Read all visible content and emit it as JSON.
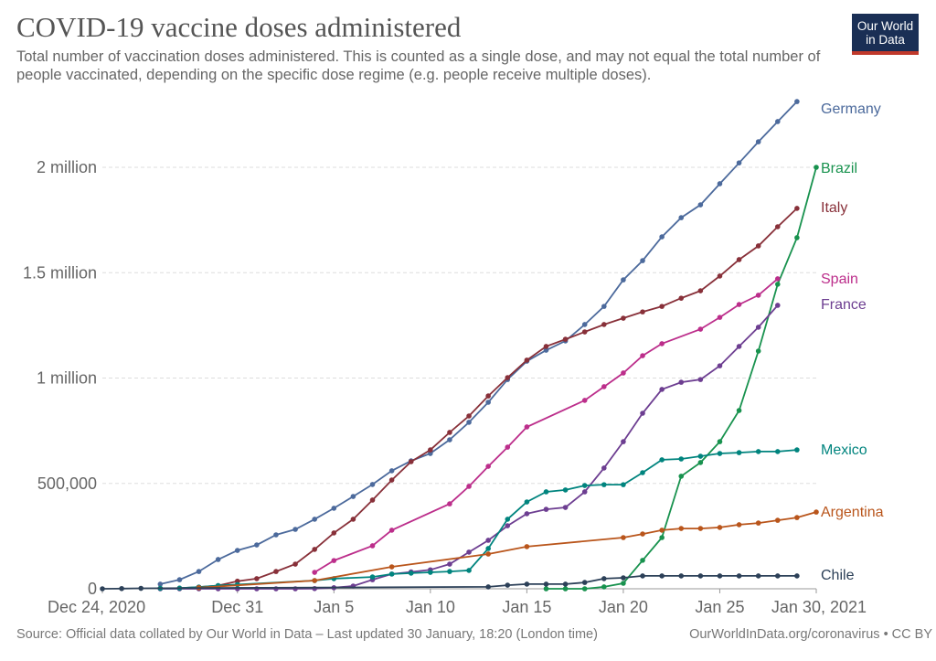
{
  "header": {
    "title": "COVID-19 vaccine doses administered",
    "subtitle": "Total number of vaccination doses administered. This is counted as a single dose, and may not equal the total number of people vaccinated, depending on the specific dose regime (e.g. people receive multiple doses).",
    "logo_text": "Our World in Data"
  },
  "footer": {
    "source": "Source: Official data collated by Our World in Data – Last updated 30 January, 18:20 (London time)",
    "link": "OurWorldInData.org/coronavirus • CC BY"
  },
  "chart_data": {
    "type": "line",
    "title": "COVID-19 vaccine doses administered",
    "xlabel": "",
    "ylabel": "",
    "x_unit": "days since Dec 24, 2020",
    "xlim": [
      0,
      37
    ],
    "ylim": [
      0,
      2400000
    ],
    "grid": true,
    "legend": "inline-right",
    "x_ticks": [
      {
        "day": 0,
        "label": "Dec 24, 2020"
      },
      {
        "day": 7,
        "label": "Dec 31"
      },
      {
        "day": 12,
        "label": "Jan 5"
      },
      {
        "day": 17,
        "label": "Jan 10"
      },
      {
        "day": 22,
        "label": "Jan 15"
      },
      {
        "day": 27,
        "label": "Jan 20"
      },
      {
        "day": 32,
        "label": "Jan 25"
      },
      {
        "day": 37,
        "label": "Jan 30, 2021"
      }
    ],
    "y_ticks": [
      {
        "value": 0,
        "label": "0"
      },
      {
        "value": 500000,
        "label": "500,000"
      },
      {
        "value": 1000000,
        "label": "1 million"
      },
      {
        "value": 1500000,
        "label": "1.5 million"
      },
      {
        "value": 2000000,
        "label": "2 million"
      }
    ],
    "series": [
      {
        "name": "Germany",
        "color": "#4c6a9c",
        "points": [
          [
            3,
            22000
          ],
          [
            4,
            43000
          ],
          [
            5,
            82000
          ],
          [
            6,
            139000
          ],
          [
            7,
            182000
          ],
          [
            8,
            208000
          ],
          [
            9,
            256000
          ],
          [
            10,
            282000
          ],
          [
            11,
            330000
          ],
          [
            12,
            382000
          ],
          [
            13,
            438000
          ],
          [
            14,
            495000
          ],
          [
            15,
            560000
          ],
          [
            16,
            607000
          ],
          [
            17,
            642000
          ],
          [
            18,
            707000
          ],
          [
            19,
            790000
          ],
          [
            20,
            885000
          ],
          [
            21,
            993000
          ],
          [
            22,
            1080000
          ],
          [
            23,
            1132000
          ],
          [
            24,
            1176000
          ],
          [
            25,
            1254000
          ],
          [
            26,
            1340000
          ],
          [
            27,
            1466000
          ],
          [
            28,
            1557000
          ],
          [
            29,
            1670000
          ],
          [
            30,
            1761000
          ],
          [
            31,
            1822000
          ],
          [
            32,
            1922000
          ],
          [
            33,
            2021000
          ],
          [
            34,
            2121000
          ],
          [
            35,
            2217000
          ],
          [
            36,
            2312000
          ]
        ]
      },
      {
        "name": "Brazil",
        "color": "#18924e",
        "points": [
          [
            23,
            0
          ],
          [
            24,
            0
          ],
          [
            25,
            0
          ],
          [
            26,
            9000
          ],
          [
            27,
            26000
          ],
          [
            28,
            135000
          ],
          [
            29,
            243000
          ],
          [
            30,
            534000
          ],
          [
            31,
            599000
          ],
          [
            32,
            698000
          ],
          [
            33,
            846000
          ],
          [
            34,
            1128000
          ],
          [
            35,
            1445000
          ],
          [
            36,
            1666000
          ],
          [
            37,
            2000000
          ]
        ]
      },
      {
        "name": "Italy",
        "color": "#883039",
        "points": [
          [
            3,
            2000
          ],
          [
            4,
            3000
          ],
          [
            5,
            8000
          ],
          [
            6,
            15000
          ],
          [
            7,
            36000
          ],
          [
            8,
            48000
          ],
          [
            9,
            82000
          ],
          [
            10,
            117000
          ],
          [
            11,
            187000
          ],
          [
            12,
            265000
          ],
          [
            13,
            330000
          ],
          [
            14,
            421000
          ],
          [
            15,
            516000
          ],
          [
            16,
            603000
          ],
          [
            17,
            659000
          ],
          [
            18,
            742000
          ],
          [
            19,
            820000
          ],
          [
            20,
            915000
          ],
          [
            21,
            1002000
          ],
          [
            22,
            1085000
          ],
          [
            23,
            1150000
          ],
          [
            24,
            1184000
          ],
          [
            25,
            1219000
          ],
          [
            26,
            1254000
          ],
          [
            27,
            1284000
          ],
          [
            28,
            1314000
          ],
          [
            29,
            1340000
          ],
          [
            30,
            1379000
          ],
          [
            31,
            1414000
          ],
          [
            32,
            1484000
          ],
          [
            33,
            1562000
          ],
          [
            34,
            1627000
          ],
          [
            35,
            1718000
          ],
          [
            36,
            1805000
          ]
        ]
      },
      {
        "name": "Spain",
        "color": "#bc2e8b",
        "points": [
          [
            11,
            78000
          ],
          [
            12,
            134000
          ],
          [
            14,
            204000
          ],
          [
            15,
            278000
          ],
          [
            18,
            403000
          ],
          [
            19,
            486000
          ],
          [
            20,
            581000
          ],
          [
            21,
            672000
          ],
          [
            22,
            768000
          ],
          [
            25,
            894000
          ],
          [
            26,
            959000
          ],
          [
            27,
            1024000
          ],
          [
            28,
            1106000
          ],
          [
            29,
            1163000
          ],
          [
            31,
            1232000
          ],
          [
            32,
            1288000
          ],
          [
            33,
            1349000
          ],
          [
            34,
            1393000
          ],
          [
            35,
            1471000
          ]
        ]
      },
      {
        "name": "France",
        "color": "#6d3e91",
        "points": [
          [
            3,
            0
          ],
          [
            4,
            0
          ],
          [
            5,
            0
          ],
          [
            6,
            0
          ],
          [
            7,
            0
          ],
          [
            8,
            0
          ],
          [
            9,
            0
          ],
          [
            10,
            0
          ],
          [
            11,
            1000
          ],
          [
            12,
            5000
          ],
          [
            13,
            13000
          ],
          [
            14,
            43000
          ],
          [
            15,
            70000
          ],
          [
            16,
            80000
          ],
          [
            17,
            90000
          ],
          [
            18,
            117000
          ],
          [
            19,
            174000
          ],
          [
            20,
            230000
          ],
          [
            21,
            299000
          ],
          [
            22,
            356000
          ],
          [
            23,
            377000
          ],
          [
            24,
            386000
          ],
          [
            25,
            460000
          ],
          [
            26,
            573000
          ],
          [
            27,
            698000
          ],
          [
            28,
            833000
          ],
          [
            29,
            946000
          ],
          [
            30,
            980000
          ],
          [
            31,
            993000
          ],
          [
            32,
            1058000
          ],
          [
            33,
            1150000
          ],
          [
            34,
            1241000
          ],
          [
            35,
            1345000
          ]
        ]
      },
      {
        "name": "Mexico",
        "color": "#00847e",
        "points": [
          [
            3,
            2000
          ],
          [
            4,
            3000
          ],
          [
            5,
            8000
          ],
          [
            6,
            15000
          ],
          [
            7,
            20000
          ],
          [
            11,
            39000
          ],
          [
            12,
            48000
          ],
          [
            14,
            56000
          ],
          [
            15,
            70000
          ],
          [
            16,
            74000
          ],
          [
            17,
            78000
          ],
          [
            18,
            82000
          ],
          [
            19,
            87000
          ],
          [
            20,
            191000
          ],
          [
            21,
            330000
          ],
          [
            22,
            412000
          ],
          [
            23,
            460000
          ],
          [
            24,
            469000
          ],
          [
            25,
            490000
          ],
          [
            26,
            494000
          ],
          [
            27,
            494000
          ],
          [
            28,
            551000
          ],
          [
            29,
            612000
          ],
          [
            30,
            616000
          ],
          [
            31,
            629000
          ],
          [
            32,
            642000
          ],
          [
            33,
            646000
          ],
          [
            34,
            651000
          ],
          [
            35,
            651000
          ],
          [
            36,
            659000
          ]
        ]
      },
      {
        "name": "Argentina",
        "color": "#b9551b",
        "points": [
          [
            5,
            5000
          ],
          [
            11,
            39000
          ],
          [
            15,
            104000
          ],
          [
            20,
            165000
          ],
          [
            22,
            200000
          ],
          [
            27,
            243000
          ],
          [
            28,
            260000
          ],
          [
            29,
            278000
          ],
          [
            30,
            286000
          ],
          [
            31,
            286000
          ],
          [
            32,
            291000
          ],
          [
            33,
            304000
          ],
          [
            34,
            312000
          ],
          [
            35,
            325000
          ],
          [
            36,
            338000
          ],
          [
            37,
            364000
          ]
        ]
      },
      {
        "name": "Chile",
        "color": "#2c4058",
        "points": [
          [
            0,
            0
          ],
          [
            1,
            1000
          ],
          [
            2,
            2000
          ],
          [
            20,
            9000
          ],
          [
            21,
            17000
          ],
          [
            22,
            22000
          ],
          [
            23,
            22000
          ],
          [
            24,
            22000
          ],
          [
            25,
            30000
          ],
          [
            26,
            48000
          ],
          [
            27,
            52000
          ],
          [
            28,
            61000
          ],
          [
            29,
            61000
          ],
          [
            30,
            61000
          ],
          [
            31,
            61000
          ],
          [
            32,
            61000
          ],
          [
            33,
            61000
          ],
          [
            34,
            61000
          ],
          [
            35,
            61000
          ],
          [
            36,
            61000
          ]
        ]
      }
    ]
  }
}
